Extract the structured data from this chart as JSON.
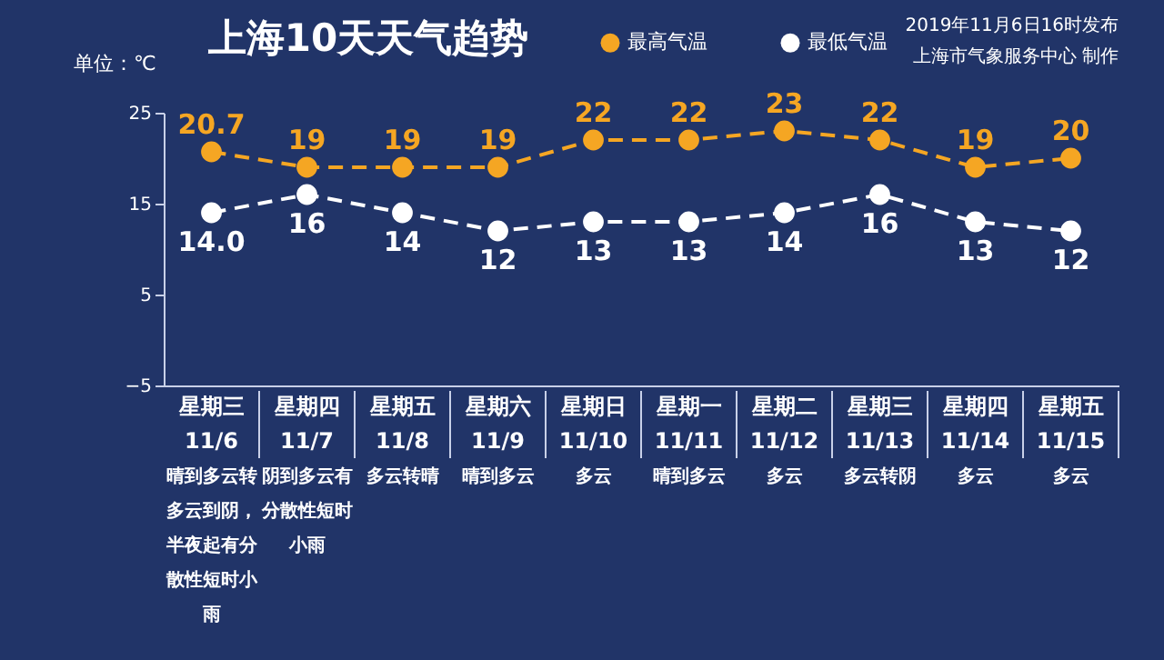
{
  "chart_data": {
    "type": "line",
    "title": "上海10天天气趋势",
    "ylabel": "单位：℃",
    "annotations": [
      "2019年11月6日16时发布",
      "上海市气象服务中心 制作",
      "晴到多云转多云到阴，半夜起有分散性短时小雨",
      "阴到多云有分散性短时小雨",
      "多云转晴",
      "晴到多云",
      "多云",
      "晴到多云",
      "多云",
      "多云转阴",
      "多云",
      "多云"
    ],
    "categories": [
      "星期三\n11/6",
      "星期四\n11/7",
      "星期五\n11/8",
      "星期六\n11/9",
      "星期日\n11/10",
      "星期一\n11/11",
      "星期二\n11/12",
      "星期三\n11/13",
      "星期四\n11/14",
      "星期五\n11/15"
    ],
    "series": [
      {
        "name": "最高气温",
        "color": "#f5a623",
        "values": [
          20.7,
          19,
          19,
          19,
          22,
          22,
          23,
          22,
          19,
          20
        ],
        "value_labels": [
          "20.7",
          "19",
          "19",
          "19",
          "22",
          "22",
          "23",
          "22",
          "19",
          "20"
        ]
      },
      {
        "name": "最低气温",
        "color": "#ffffff",
        "values": [
          14.0,
          16,
          14,
          12,
          13,
          13,
          14,
          16,
          13,
          12
        ],
        "value_labels": [
          "14.0",
          "16",
          "14",
          "12",
          "13",
          "13",
          "14",
          "16",
          "13",
          "12"
        ]
      }
    ],
    "ylim": [
      -5,
      25
    ],
    "yticks": [
      -5,
      5,
      15,
      25
    ],
    "grid": false,
    "legend": "top",
    "marker": "circle",
    "line_style": "dashed"
  }
}
